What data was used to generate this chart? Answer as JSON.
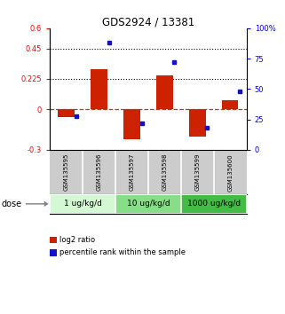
{
  "title": "GDS2924 / 13381",
  "samples": [
    "GSM135595",
    "GSM135596",
    "GSM135597",
    "GSM135598",
    "GSM135599",
    "GSM135600"
  ],
  "log2_ratios": [
    -0.055,
    0.3,
    -0.22,
    0.25,
    -0.2,
    0.07
  ],
  "percentile_ranks": [
    28,
    88,
    22,
    72,
    18,
    48
  ],
  "dose_groups": [
    {
      "label": "1 ug/kg/d",
      "start": 0,
      "end": 1,
      "color": "#d4f7d4"
    },
    {
      "label": "10 ug/kg/d",
      "start": 2,
      "end": 3,
      "color": "#88dd88"
    },
    {
      "label": "1000 ug/kg/d",
      "start": 4,
      "end": 5,
      "color": "#44bb44"
    }
  ],
  "ylim_left": [
    -0.3,
    0.6
  ],
  "ylim_right": [
    0,
    100
  ],
  "yticks_left": [
    -0.3,
    0.0,
    0.225,
    0.45,
    0.6
  ],
  "ytick_labels_left": [
    "-0.3",
    "0",
    "0.225",
    "0.45",
    "0.6"
  ],
  "yticks_right": [
    0,
    25,
    50,
    75,
    100
  ],
  "ytick_labels_right": [
    "0",
    "25",
    "50",
    "75",
    "100%"
  ],
  "hlines": [
    0.225,
    0.45
  ],
  "bar_color": "#cc2200",
  "square_color": "#1111cc",
  "zero_line_color": "#cc3300",
  "sample_bg_color": "#cccccc",
  "bg_color": "#ffffff",
  "legend_red_label": "log2 ratio",
  "legend_blue_label": "percentile rank within the sample",
  "bar_width": 0.5
}
